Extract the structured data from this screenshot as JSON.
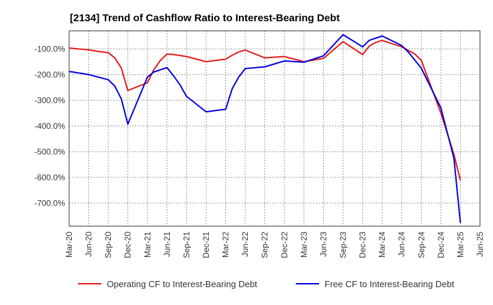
{
  "chart_data": {
    "type": "line",
    "title": "[2134]  Trend of Cashflow Ratio to Interest-Bearing Debt",
    "xlabel": "",
    "ylabel": "",
    "ylim": [
      -790,
      -30
    ],
    "y_ticks": [
      -100,
      -200,
      -300,
      -400,
      -500,
      -600,
      -700
    ],
    "y_tick_labels": [
      "-100.0%",
      "-200.0%",
      "-300.0%",
      "-400.0%",
      "-500.0%",
      "-600.0%",
      "-700.0%"
    ],
    "x_tick_labels": [
      "Mar-20",
      "Jun-20",
      "Sep-20",
      "Dec-20",
      "Mar-21",
      "Jun-21",
      "Sep-21",
      "Dec-21",
      "Mar-22",
      "Jun-22",
      "Sep-22",
      "Dec-22",
      "Mar-23",
      "Jun-23",
      "Sep-23",
      "Dec-23",
      "Mar-24",
      "Jun-24",
      "Sep-24",
      "Dec-24",
      "Mar-25",
      "Jun-25"
    ],
    "grid": true,
    "grid_style": "dotted",
    "legend_position": "bottom",
    "series": [
      {
        "name": "Operating CF to Interest-Bearing Debt",
        "color": "#e41a1c",
        "points": [
          [
            "Mar-20",
            -97
          ],
          [
            "Jun-20",
            -104
          ],
          [
            "Aug-20",
            -112
          ],
          [
            "Sep-20",
            -115
          ],
          [
            "Oct-20",
            -135
          ],
          [
            "Nov-20",
            -175
          ],
          [
            "Dec-20",
            -262
          ],
          [
            "Mar-21",
            -232
          ],
          [
            "Apr-21",
            -180
          ],
          [
            "May-21",
            -145
          ],
          [
            "Jun-21",
            -120
          ],
          [
            "Jul-21",
            -122
          ],
          [
            "Sep-21",
            -130
          ],
          [
            "Dec-21",
            -150
          ],
          [
            "Mar-22",
            -140
          ],
          [
            "Apr-22",
            -125
          ],
          [
            "May-22",
            -112
          ],
          [
            "Jun-22",
            -105
          ],
          [
            "Sep-22",
            -135
          ],
          [
            "Dec-22",
            -130
          ],
          [
            "Mar-23",
            -150
          ],
          [
            "Jun-23",
            -137
          ],
          [
            "Sep-23",
            -72
          ],
          [
            "Dec-23",
            -122
          ],
          [
            "Jan-24",
            -90
          ],
          [
            "Feb-24",
            -75
          ],
          [
            "Mar-24",
            -67
          ],
          [
            "Jun-24",
            -92
          ],
          [
            "Aug-24",
            -120
          ],
          [
            "Sep-24",
            -145
          ],
          [
            "Dec-24",
            -350
          ],
          [
            "Feb-25",
            -510
          ],
          [
            "Mar-25",
            -612
          ]
        ]
      },
      {
        "name": "Free CF to Interest-Bearing Debt",
        "color": "#0000e0",
        "points": [
          [
            "Mar-20",
            -188
          ],
          [
            "Jun-20",
            -200
          ],
          [
            "Sep-20",
            -220
          ],
          [
            "Oct-20",
            -245
          ],
          [
            "Nov-20",
            -295
          ],
          [
            "Dec-20",
            -393
          ],
          [
            "Mar-21",
            -210
          ],
          [
            "Apr-21",
            -190
          ],
          [
            "Jun-21",
            -173
          ],
          [
            "Jul-21",
            -205
          ],
          [
            "Aug-21",
            -240
          ],
          [
            "Sep-21",
            -285
          ],
          [
            "Dec-21",
            -345
          ],
          [
            "Mar-22",
            -335
          ],
          [
            "Apr-22",
            -255
          ],
          [
            "May-22",
            -210
          ],
          [
            "Jun-22",
            -177
          ],
          [
            "Sep-22",
            -170
          ],
          [
            "Dec-22",
            -147
          ],
          [
            "Mar-23",
            -152
          ],
          [
            "Jun-23",
            -127
          ],
          [
            "Sep-23",
            -45
          ],
          [
            "Dec-23",
            -92
          ],
          [
            "Jan-24",
            -67
          ],
          [
            "Mar-24",
            -50
          ],
          [
            "Jun-24",
            -87
          ],
          [
            "Jul-24",
            -112
          ],
          [
            "Sep-24",
            -175
          ],
          [
            "Dec-24",
            -330
          ],
          [
            "Feb-25",
            -525
          ],
          [
            "Mar-25",
            -777
          ]
        ]
      }
    ]
  }
}
